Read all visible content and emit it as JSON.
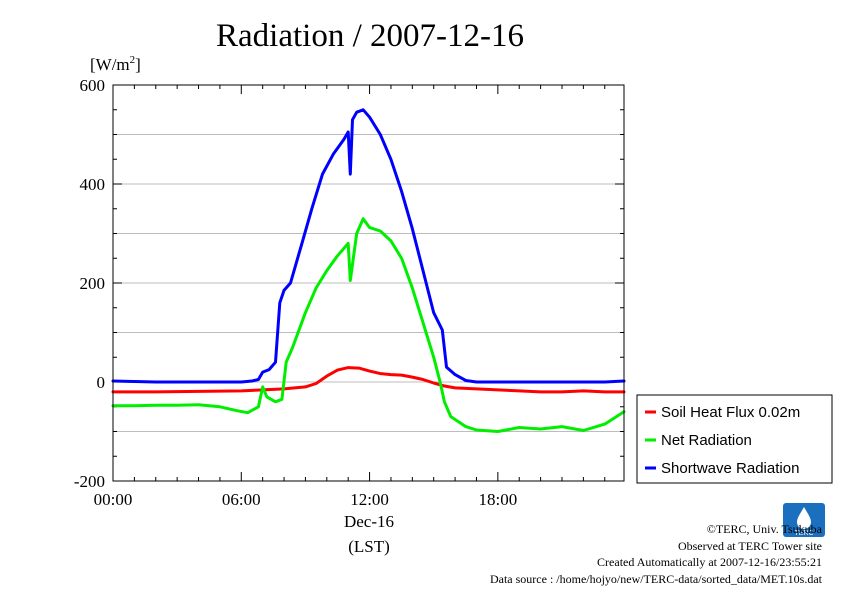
{
  "chart_data": {
    "type": "line",
    "title": "Radiation / 2007-12-16",
    "ylabel_prefix": "[W/m",
    "ylabel_sup": "2",
    "ylabel_suffix": "]",
    "xlabel_date": "Dec-16",
    "xlabel_tz": "(LST)",
    "ylim": [
      -200,
      600
    ],
    "xlim": [
      0,
      23.9
    ],
    "y_ticks": [
      -200,
      0,
      200,
      400,
      600
    ],
    "y_tick_labels": [
      "-200",
      "0",
      "200",
      "400",
      "600"
    ],
    "x_ticks": [
      0,
      6,
      12,
      18
    ],
    "x_tick_labels": [
      "00:00",
      "06:00",
      "12:00",
      "18:00"
    ],
    "grid": true,
    "legend_position": "right",
    "series": [
      {
        "name": "Soil Heat Flux 0.02m",
        "color": "#ff0000",
        "x": [
          0,
          2,
          4,
          6,
          7,
          8,
          9,
          9.5,
          10,
          10.5,
          11,
          11.5,
          12,
          12.5,
          13,
          13.5,
          14,
          14.5,
          15,
          15.5,
          16,
          17,
          18,
          19,
          20,
          21,
          22,
          23,
          23.9
        ],
        "y": [
          -20,
          -20,
          -19,
          -18,
          -16,
          -14,
          -10,
          -3,
          12,
          24,
          29,
          28,
          22,
          17,
          15,
          14,
          10,
          5,
          -2,
          -8,
          -12,
          -14,
          -16,
          -18,
          -20,
          -20,
          -18,
          -20,
          -20
        ]
      },
      {
        "name": "Net Radiation",
        "color": "#00ee00",
        "x": [
          0,
          1,
          2,
          3,
          4,
          5,
          5.8,
          6.3,
          6.8,
          7.0,
          7.2,
          7.6,
          7.9,
          8.1,
          8.4,
          9,
          9.5,
          10,
          10.5,
          11,
          11.1,
          11.4,
          11.7,
          12,
          12.5,
          13,
          13.5,
          14,
          14.5,
          15,
          15.3,
          15.5,
          15.8,
          16.5,
          17,
          18,
          19,
          20,
          21,
          22,
          23,
          23.9
        ],
        "y": [
          -48,
          -48,
          -47,
          -47,
          -46,
          -50,
          -58,
          -62,
          -50,
          -10,
          -30,
          -40,
          -35,
          40,
          70,
          140,
          190,
          225,
          255,
          280,
          205,
          300,
          330,
          312,
          305,
          285,
          250,
          190,
          120,
          50,
          0,
          -40,
          -70,
          -90,
          -97,
          -100,
          -92,
          -95,
          -90,
          -98,
          -85,
          -60
        ]
      },
      {
        "name": "Shortwave Radiation",
        "color": "#0000ff",
        "x": [
          0,
          1,
          2,
          3,
          4,
          5,
          6,
          6.5,
          6.8,
          7.0,
          7.3,
          7.6,
          7.8,
          8.0,
          8.3,
          8.8,
          9.3,
          9.8,
          10.3,
          10.8,
          11.0,
          11.1,
          11.2,
          11.4,
          11.7,
          12,
          12.5,
          13,
          13.5,
          14,
          14.5,
          15,
          15.4,
          15.6,
          16,
          16.5,
          17,
          18,
          19,
          20,
          21,
          22,
          23,
          23.9
        ],
        "y": [
          2,
          1,
          0,
          0,
          0,
          0,
          0,
          2,
          5,
          20,
          25,
          40,
          160,
          185,
          200,
          275,
          350,
          420,
          460,
          490,
          505,
          420,
          530,
          545,
          550,
          535,
          500,
          450,
          385,
          310,
          225,
          140,
          105,
          30,
          15,
          3,
          0,
          0,
          0,
          0,
          0,
          0,
          0,
          2
        ]
      }
    ]
  },
  "footer": {
    "copyright": "©TERC, Univ. Tsukuba",
    "observed": "Observed at TERC Tower site",
    "created": "Created Automatically at 2007-12-16/23:55:21",
    "source": "Data source : /home/hojyo/new/TERC-data/sorted_data/MET.10s.dat"
  },
  "logo": {
    "text": "TERC",
    "color": "#1a6fbf"
  }
}
